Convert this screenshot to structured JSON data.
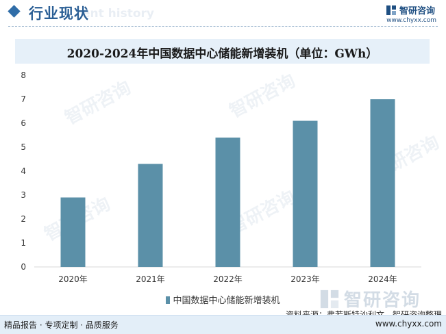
{
  "header": {
    "title": "行业现状",
    "bg_text": "ent history",
    "brand_name": "智研咨询",
    "brand_url": "www.chyxx.com"
  },
  "watermark": "智研咨询",
  "chart_data": {
    "type": "bar",
    "title": "2020-2024年中国数据中心储能新增装机（单位：GWh）",
    "categories": [
      "2020年",
      "2021年",
      "2022年",
      "2023年",
      "2024年"
    ],
    "series": [
      {
        "name": "中国数据中心储能新增装机",
        "values": [
          2.9,
          4.3,
          5.4,
          6.1,
          7.0
        ]
      }
    ],
    "ylim": [
      0,
      8
    ],
    "yticks": [
      0,
      1,
      2,
      3,
      4,
      5,
      6,
      7,
      8
    ],
    "grid": false,
    "legend": "bottom-center",
    "color": "#5b90a8"
  },
  "source": "资料来源：弗若斯特沙利文、智研咨询整理",
  "footer": {
    "left": "精品报告 · 专项定制 · 品质服务",
    "right": "www.chyxx.com"
  }
}
